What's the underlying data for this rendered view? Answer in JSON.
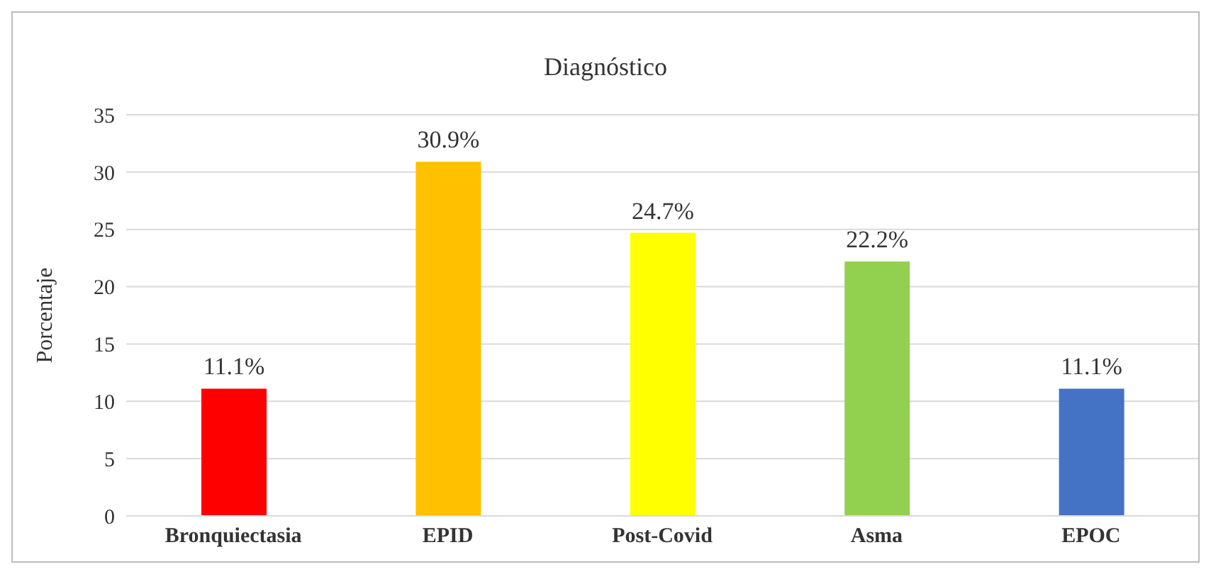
{
  "chart_data": {
    "type": "bar",
    "title": "Diagnóstico",
    "ylabel": "Porcentaje",
    "categories": [
      "Bronquiectasia",
      "EPID",
      "Post-Covid",
      "Asma",
      "EPOC"
    ],
    "values": [
      11.1,
      30.9,
      24.7,
      22.2,
      11.1
    ],
    "colors": [
      "#ff0000",
      "#ffc000",
      "#ffff00",
      "#92d050",
      "#4472c4"
    ],
    "value_labels": [
      "11.1%",
      "30.9%",
      "24.7%",
      "22.2%",
      "11.1%"
    ],
    "ylim": [
      0,
      35
    ],
    "yticks": [
      0,
      5,
      10,
      15,
      20,
      25,
      30,
      35
    ],
    "grid": "y"
  }
}
